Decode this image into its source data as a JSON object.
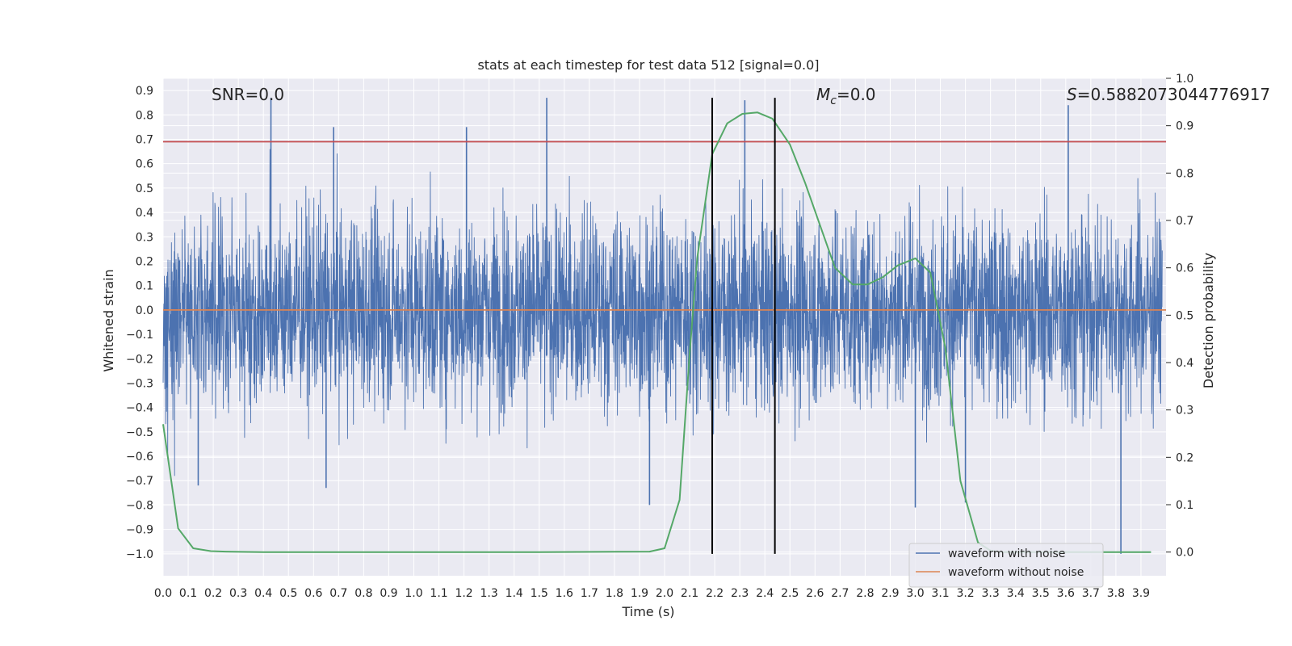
{
  "chart_data": {
    "type": "line",
    "title": "stats at each timestep for test data 512 [signal=0.0]",
    "xlabel": "Time (s)",
    "ylabel": "Whitened strain",
    "y2label": "Detection probability",
    "xlim": [
      0.0,
      4.0
    ],
    "ylim": [
      -1.09,
      0.95
    ],
    "y2lim": [
      -0.05,
      1.0
    ],
    "grid": true,
    "legend_position": "lower-right",
    "x_ticks": [
      "0.0",
      "0.1",
      "0.2",
      "0.3",
      "0.4",
      "0.5",
      "0.6",
      "0.7",
      "0.8",
      "0.9",
      "1.0",
      "1.1",
      "1.2",
      "1.3",
      "1.4",
      "1.5",
      "1.6",
      "1.7",
      "1.8",
      "1.9",
      "2.0",
      "2.1",
      "2.2",
      "2.3",
      "2.4",
      "2.5",
      "2.6",
      "2.7",
      "2.8",
      "2.9",
      "3.0",
      "3.1",
      "3.2",
      "3.3",
      "3.4",
      "3.5",
      "3.6",
      "3.7",
      "3.8",
      "3.9"
    ],
    "y_ticks": [
      "0.9",
      "0.8",
      "0.7",
      "0.6",
      "0.5",
      "0.4",
      "0.3",
      "0.2",
      "0.1",
      "0.0",
      "−0.1",
      "−0.2",
      "−0.3",
      "−0.4",
      "−0.5",
      "−0.6",
      "−0.7",
      "−0.8",
      "−0.9",
      "−1.0"
    ],
    "y2_ticks": [
      "1.0",
      "0.9",
      "0.8",
      "0.7",
      "0.6",
      "0.5",
      "0.4",
      "0.3",
      "0.2",
      "0.1",
      "0.0"
    ],
    "annotations": {
      "snr": "SNR=0.0",
      "mc_symbol": "M",
      "mc_sub": "c",
      "mc_value": "=0.0",
      "s_symbol": "S",
      "s_value": "=0.5882073044776917"
    },
    "series": [
      {
        "name": "waveform with noise",
        "color": "#4c72b0",
        "note": "dense noise, approx. amplitude band -0.5 to 0.5 with spikes up to 0.87 and down to -1.0",
        "spikes": [
          {
            "x": 0.43,
            "y": 0.87
          },
          {
            "x": 1.53,
            "y": 0.87
          },
          {
            "x": 2.32,
            "y": 0.86
          },
          {
            "x": 3.61,
            "y": 0.84
          },
          {
            "x": 0.68,
            "y": 0.75
          },
          {
            "x": 1.21,
            "y": 0.75
          },
          {
            "x": 3.82,
            "y": -1.0
          },
          {
            "x": 1.94,
            "y": -0.8
          },
          {
            "x": 3.0,
            "y": -0.81
          },
          {
            "x": 3.2,
            "y": -0.79
          },
          {
            "x": 0.14,
            "y": -0.72
          },
          {
            "x": 0.65,
            "y": -0.73
          }
        ]
      },
      {
        "name": "waveform without noise",
        "color": "#dd8452",
        "x": [
          0.0,
          4.0
        ],
        "y": [
          0.0,
          0.0
        ]
      },
      {
        "color": "#55a868",
        "axis": "right",
        "x": [
          0.0,
          0.06,
          0.12,
          0.19,
          0.25,
          0.4,
          1.0,
          1.5,
          1.94,
          2.0,
          2.06,
          2.1,
          2.13,
          2.19,
          2.25,
          2.31,
          2.37,
          2.43,
          2.5,
          2.56,
          2.62,
          2.68,
          2.75,
          2.81,
          2.87,
          2.93,
          3.0,
          3.06,
          3.12,
          3.18,
          3.25,
          3.3,
          3.35,
          3.5,
          3.8,
          3.94
        ],
        "y": [
          0.27,
          0.05,
          0.008,
          0.002,
          0.001,
          0.0,
          0.0,
          0.0,
          0.001,
          0.008,
          0.11,
          0.42,
          0.62,
          0.84,
          0.905,
          0.925,
          0.928,
          0.915,
          0.86,
          0.78,
          0.69,
          0.6,
          0.565,
          0.565,
          0.58,
          0.605,
          0.62,
          0.59,
          0.43,
          0.15,
          0.02,
          0.003,
          0.0,
          0.0,
          0.0,
          0.0
        ]
      }
    ],
    "horizontal_lines": [
      {
        "y": 0.69,
        "color": "#c44e52"
      }
    ],
    "vertical_lines": [
      {
        "x": 2.19,
        "color": "#000000",
        "y_top": 0.87,
        "y_bottom": -1.0
      },
      {
        "x": 2.44,
        "color": "#000000",
        "y_top": 0.87,
        "y_bottom": -1.0
      }
    ]
  },
  "colors": {
    "background": "#ffffff",
    "plot_area": "#eaeaf2",
    "grid": "#ffffff"
  }
}
